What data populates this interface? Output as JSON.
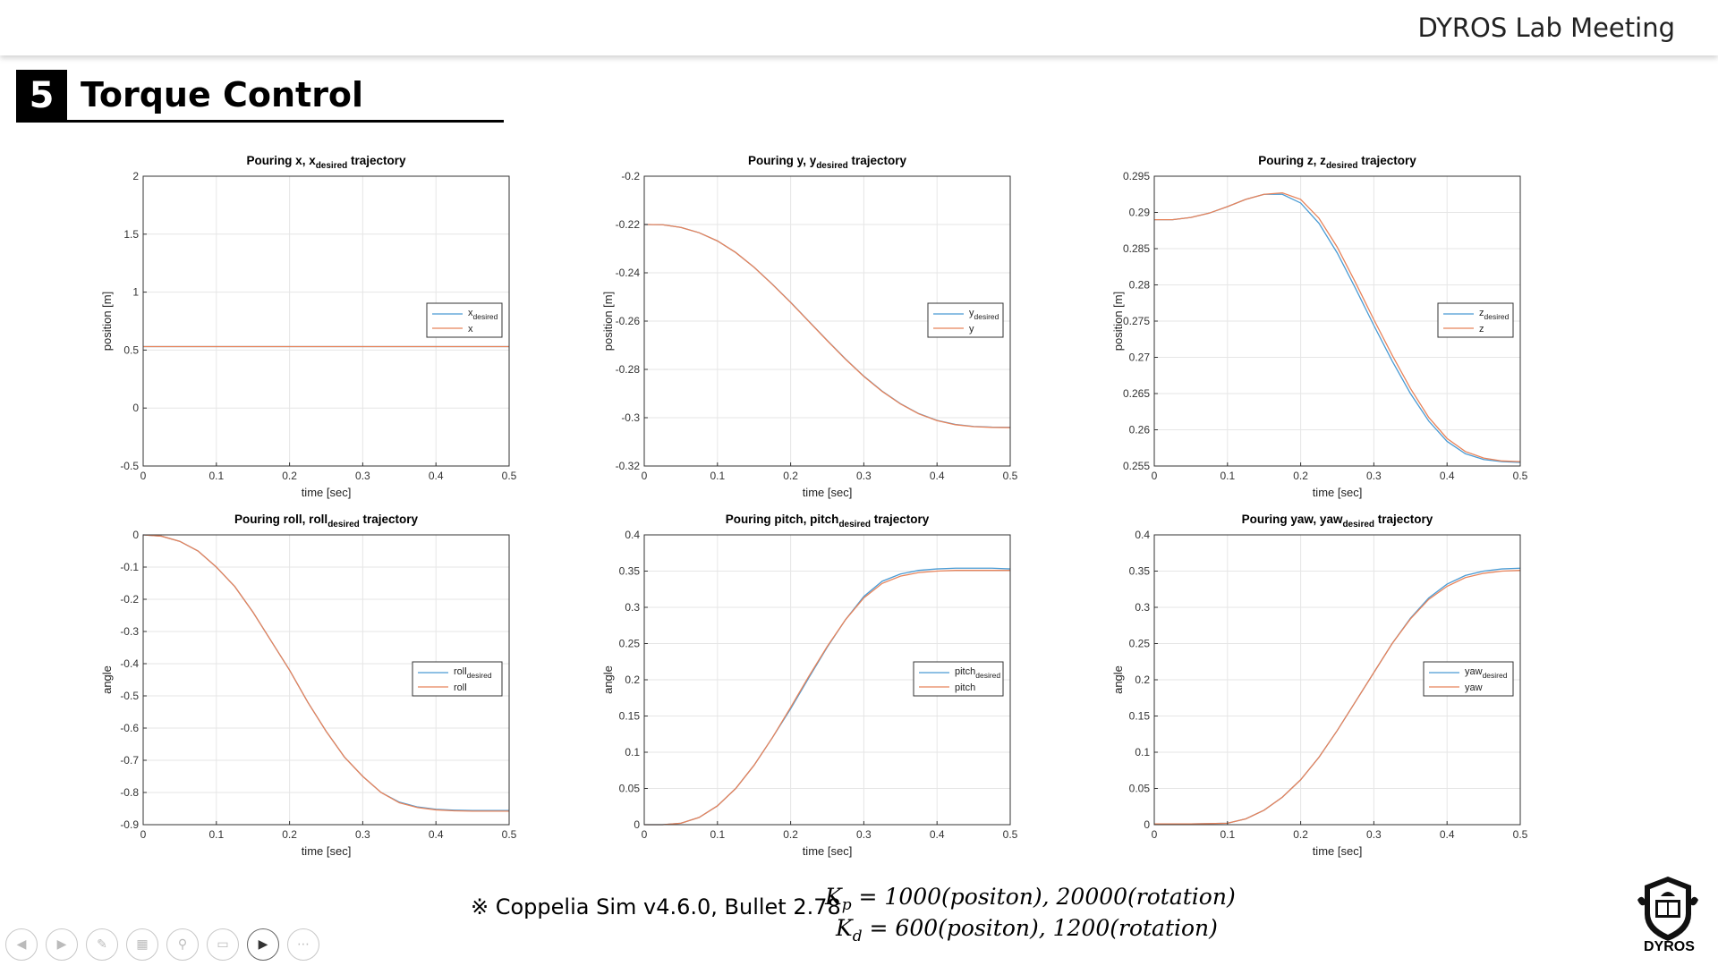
{
  "header": {
    "meeting_title": "DYROS Lab Meeting"
  },
  "section": {
    "number": "5",
    "title": "Torque Control"
  },
  "footer": {
    "note": "※ Coppelia Sim v4.6.0, Bullet 2.78",
    "kp_label": "K",
    "kp_sub": "p",
    "kp_value": "= 1000(positon), 20000(rotation)",
    "kd_label": "K",
    "kd_sub": "d",
    "kd_value": "= 600(positon), 1200(rotation)",
    "logo_text": "DYROS"
  },
  "controls": [
    "prev-icon",
    "next-icon",
    "pen-icon",
    "slides-icon",
    "zoom-icon",
    "subtitles-icon",
    "camera-icon",
    "more-icon"
  ],
  "chart_data": [
    {
      "type": "line",
      "title": "Pouring x, x",
      "title_sub": "desired",
      "title_suffix": " trajectory",
      "xlabel": "time [sec]",
      "ylabel": "position [m]",
      "xlim": [
        0,
        0.5
      ],
      "ylim": [
        -0.5,
        2
      ],
      "xticks": [
        0,
        0.1,
        0.2,
        0.3,
        0.4,
        0.5
      ],
      "xtick_labels": [
        "0",
        "0.1",
        "0.2",
        "0.3",
        "0.4",
        "0.5"
      ],
      "yticks": [
        -0.5,
        0,
        0.5,
        1,
        1.5,
        2
      ],
      "ytick_labels": [
        "-0.5",
        "0",
        "0.5",
        "1",
        "1.5",
        "2"
      ],
      "grid": true,
      "legend_position": "right",
      "series": [
        {
          "name": "x",
          "name_sub": "desired",
          "color": "#4a9bd4",
          "x": [
            0,
            0.1,
            0.2,
            0.3,
            0.4,
            0.5
          ],
          "y": [
            0.53,
            0.53,
            0.53,
            0.53,
            0.53,
            0.53
          ]
        },
        {
          "name": "x",
          "name_sub": "",
          "color": "#e8835a",
          "x": [
            0,
            0.1,
            0.2,
            0.3,
            0.4,
            0.5
          ],
          "y": [
            0.53,
            0.53,
            0.53,
            0.53,
            0.53,
            0.53
          ]
        }
      ]
    },
    {
      "type": "line",
      "title": "Pouring y, y",
      "title_sub": "desired",
      "title_suffix": " trajectory",
      "xlabel": "time [sec]",
      "ylabel": "position [m]",
      "xlim": [
        0,
        0.5
      ],
      "ylim": [
        -0.32,
        -0.2
      ],
      "xticks": [
        0,
        0.1,
        0.2,
        0.3,
        0.4,
        0.5
      ],
      "xtick_labels": [
        "0",
        "0.1",
        "0.2",
        "0.3",
        "0.4",
        "0.5"
      ],
      "yticks": [
        -0.32,
        -0.3,
        -0.28,
        -0.26,
        -0.24,
        -0.22,
        -0.2
      ],
      "ytick_labels": [
        "-0.32",
        "-0.3",
        "-0.28",
        "-0.26",
        "-0.24",
        "-0.22",
        "-0.2"
      ],
      "grid": true,
      "legend_position": "right",
      "series": [
        {
          "name": "y",
          "name_sub": "desired",
          "color": "#4a9bd4",
          "x": [
            0,
            0.025,
            0.05,
            0.075,
            0.1,
            0.125,
            0.15,
            0.175,
            0.2,
            0.225,
            0.25,
            0.275,
            0.3,
            0.325,
            0.35,
            0.375,
            0.4,
            0.425,
            0.45,
            0.475,
            0.5
          ],
          "y": [
            -0.22,
            -0.2201,
            -0.2212,
            -0.2234,
            -0.2268,
            -0.2316,
            -0.2377,
            -0.2447,
            -0.2522,
            -0.2601,
            -0.268,
            -0.2757,
            -0.2828,
            -0.289,
            -0.2942,
            -0.2983,
            -0.3011,
            -0.3028,
            -0.3036,
            -0.3039,
            -0.304
          ]
        },
        {
          "name": "y",
          "name_sub": "",
          "color": "#e8835a",
          "x": [
            0,
            0.025,
            0.05,
            0.075,
            0.1,
            0.125,
            0.15,
            0.175,
            0.2,
            0.225,
            0.25,
            0.275,
            0.3,
            0.325,
            0.35,
            0.375,
            0.4,
            0.425,
            0.45,
            0.475,
            0.5
          ],
          "y": [
            -0.22,
            -0.2201,
            -0.2212,
            -0.2234,
            -0.2268,
            -0.2316,
            -0.2377,
            -0.2448,
            -0.2523,
            -0.2602,
            -0.2681,
            -0.2758,
            -0.2829,
            -0.2891,
            -0.2943,
            -0.2984,
            -0.3012,
            -0.3029,
            -0.3037,
            -0.304,
            -0.3041
          ]
        }
      ]
    },
    {
      "type": "line",
      "title": "Pouring z, z",
      "title_sub": "desired",
      "title_suffix": " trajectory",
      "xlabel": "time [sec]",
      "ylabel": "position [m]",
      "xlim": [
        0,
        0.5
      ],
      "ylim": [
        0.255,
        0.295
      ],
      "xticks": [
        0,
        0.1,
        0.2,
        0.3,
        0.4,
        0.5
      ],
      "xtick_labels": [
        "0",
        "0.1",
        "0.2",
        "0.3",
        "0.4",
        "0.5"
      ],
      "yticks": [
        0.255,
        0.26,
        0.265,
        0.27,
        0.275,
        0.28,
        0.285,
        0.29,
        0.295
      ],
      "ytick_labels": [
        "0.255",
        "0.26",
        "0.265",
        "0.27",
        "0.275",
        "0.28",
        "0.285",
        "0.29",
        "0.295"
      ],
      "grid": true,
      "legend_position": "right",
      "series": [
        {
          "name": "z",
          "name_sub": "desired",
          "color": "#4a9bd4",
          "x": [
            0,
            0.025,
            0.05,
            0.075,
            0.1,
            0.125,
            0.15,
            0.175,
            0.2,
            0.225,
            0.25,
            0.275,
            0.3,
            0.325,
            0.35,
            0.375,
            0.4,
            0.425,
            0.45,
            0.475,
            0.5
          ],
          "y": [
            0.289,
            0.289,
            0.2893,
            0.2899,
            0.2908,
            0.2918,
            0.2925,
            0.2925,
            0.2913,
            0.2885,
            0.2844,
            0.2795,
            0.2744,
            0.2695,
            0.265,
            0.2612,
            0.2584,
            0.2567,
            0.2559,
            0.2556,
            0.2555
          ]
        },
        {
          "name": "z",
          "name_sub": "",
          "color": "#e8835a",
          "x": [
            0,
            0.025,
            0.05,
            0.075,
            0.1,
            0.125,
            0.15,
            0.175,
            0.2,
            0.225,
            0.25,
            0.275,
            0.3,
            0.325,
            0.35,
            0.375,
            0.4,
            0.425,
            0.45,
            0.475,
            0.5
          ],
          "y": [
            0.289,
            0.289,
            0.2893,
            0.2899,
            0.2908,
            0.2918,
            0.2925,
            0.2927,
            0.2918,
            0.2892,
            0.2852,
            0.2803,
            0.2752,
            0.2703,
            0.2657,
            0.2617,
            0.2588,
            0.257,
            0.2561,
            0.2557,
            0.2556
          ]
        }
      ]
    },
    {
      "type": "line",
      "title": "Pouring roll, roll",
      "title_sub": "desired",
      "title_suffix": " trajectory",
      "xlabel": "time [sec]",
      "ylabel": "angle",
      "xlim": [
        0,
        0.5
      ],
      "ylim": [
        -0.9,
        0
      ],
      "xticks": [
        0,
        0.1,
        0.2,
        0.3,
        0.4,
        0.5
      ],
      "xtick_labels": [
        "0",
        "0.1",
        "0.2",
        "0.3",
        "0.4",
        "0.5"
      ],
      "yticks": [
        -0.9,
        -0.8,
        -0.7,
        -0.6,
        -0.5,
        -0.4,
        -0.3,
        -0.2,
        -0.1,
        0
      ],
      "ytick_labels": [
        "-0.9",
        "-0.8",
        "-0.7",
        "-0.6",
        "-0.5",
        "-0.4",
        "-0.3",
        "-0.2",
        "-0.1",
        "0"
      ],
      "grid": true,
      "legend_position": "right",
      "series": [
        {
          "name": "roll",
          "name_sub": "desired",
          "color": "#4a9bd4",
          "x": [
            0,
            0.025,
            0.05,
            0.075,
            0.1,
            0.125,
            0.15,
            0.175,
            0.2,
            0.225,
            0.25,
            0.275,
            0.3,
            0.325,
            0.35,
            0.375,
            0.4,
            0.425,
            0.45,
            0.475,
            0.5
          ],
          "y": [
            0,
            -0.004,
            -0.02,
            -0.05,
            -0.1,
            -0.16,
            -0.24,
            -0.33,
            -0.42,
            -0.52,
            -0.61,
            -0.69,
            -0.75,
            -0.8,
            -0.83,
            -0.845,
            -0.852,
            -0.855,
            -0.856,
            -0.856,
            -0.856
          ]
        },
        {
          "name": "roll",
          "name_sub": "",
          "color": "#e8835a",
          "x": [
            0,
            0.025,
            0.05,
            0.075,
            0.1,
            0.125,
            0.15,
            0.175,
            0.2,
            0.225,
            0.25,
            0.275,
            0.3,
            0.325,
            0.35,
            0.375,
            0.4,
            0.425,
            0.45,
            0.475,
            0.5
          ],
          "y": [
            0,
            -0.004,
            -0.02,
            -0.05,
            -0.1,
            -0.16,
            -0.24,
            -0.33,
            -0.42,
            -0.52,
            -0.61,
            -0.69,
            -0.75,
            -0.8,
            -0.832,
            -0.847,
            -0.854,
            -0.857,
            -0.858,
            -0.858,
            -0.858
          ]
        }
      ]
    },
    {
      "type": "line",
      "title": "Pouring pitch, pitch",
      "title_sub": "desired",
      "title_suffix": " trajectory",
      "xlabel": "time [sec]",
      "ylabel": "angle",
      "xlim": [
        0,
        0.5
      ],
      "ylim": [
        0,
        0.4
      ],
      "xticks": [
        0,
        0.1,
        0.2,
        0.3,
        0.4,
        0.5
      ],
      "xtick_labels": [
        "0",
        "0.1",
        "0.2",
        "0.3",
        "0.4",
        "0.5"
      ],
      "yticks": [
        0,
        0.05,
        0.1,
        0.15,
        0.2,
        0.25,
        0.3,
        0.35,
        0.4
      ],
      "ytick_labels": [
        "0",
        "0.05",
        "0.1",
        "0.15",
        "0.2",
        "0.25",
        "0.3",
        "0.35",
        "0.4"
      ],
      "grid": true,
      "legend_position": "right",
      "series": [
        {
          "name": "pitch",
          "name_sub": "desired",
          "color": "#4a9bd4",
          "x": [
            0,
            0.025,
            0.05,
            0.075,
            0.1,
            0.125,
            0.15,
            0.175,
            0.2,
            0.225,
            0.25,
            0.275,
            0.3,
            0.325,
            0.35,
            0.375,
            0.4,
            0.425,
            0.45,
            0.475,
            0.5
          ],
          "y": [
            0,
            0,
            0.002,
            0.01,
            0.026,
            0.05,
            0.082,
            0.12,
            0.16,
            0.203,
            0.245,
            0.283,
            0.315,
            0.336,
            0.346,
            0.351,
            0.353,
            0.354,
            0.354,
            0.354,
            0.353
          ]
        },
        {
          "name": "pitch",
          "name_sub": "",
          "color": "#e8835a",
          "x": [
            0,
            0.025,
            0.05,
            0.075,
            0.1,
            0.125,
            0.15,
            0.175,
            0.2,
            0.225,
            0.25,
            0.275,
            0.3,
            0.325,
            0.35,
            0.375,
            0.4,
            0.425,
            0.45,
            0.475,
            0.5
          ],
          "y": [
            0,
            0,
            0.002,
            0.01,
            0.026,
            0.05,
            0.082,
            0.12,
            0.162,
            0.205,
            0.246,
            0.283,
            0.313,
            0.333,
            0.343,
            0.348,
            0.35,
            0.351,
            0.351,
            0.351,
            0.351
          ]
        }
      ]
    },
    {
      "type": "line",
      "title": "Pouring yaw, yaw",
      "title_sub": "desired",
      "title_suffix": " trajectory",
      "xlabel": "time [sec]",
      "ylabel": "angle",
      "xlim": [
        0,
        0.5
      ],
      "ylim": [
        0,
        0.4
      ],
      "xticks": [
        0,
        0.1,
        0.2,
        0.3,
        0.4,
        0.5
      ],
      "xtick_labels": [
        "0",
        "0.1",
        "0.2",
        "0.3",
        "0.4",
        "0.5"
      ],
      "yticks": [
        0,
        0.05,
        0.1,
        0.15,
        0.2,
        0.25,
        0.3,
        0.35,
        0.4
      ],
      "ytick_labels": [
        "0",
        "0.05",
        "0.1",
        "0.15",
        "0.2",
        "0.25",
        "0.3",
        "0.35",
        "0.4"
      ],
      "grid": true,
      "legend_position": "right",
      "series": [
        {
          "name": "yaw",
          "name_sub": "desired",
          "color": "#4a9bd4",
          "x": [
            0,
            0.05,
            0.1,
            0.125,
            0.15,
            0.175,
            0.2,
            0.225,
            0.25,
            0.275,
            0.3,
            0.325,
            0.35,
            0.375,
            0.4,
            0.425,
            0.45,
            0.475,
            0.5
          ],
          "y": [
            0.001,
            0.001,
            0.002,
            0.008,
            0.02,
            0.038,
            0.062,
            0.093,
            0.13,
            0.17,
            0.21,
            0.25,
            0.285,
            0.313,
            0.332,
            0.344,
            0.35,
            0.353,
            0.354
          ]
        },
        {
          "name": "yaw",
          "name_sub": "",
          "color": "#e8835a",
          "x": [
            0,
            0.05,
            0.1,
            0.125,
            0.15,
            0.175,
            0.2,
            0.225,
            0.25,
            0.275,
            0.3,
            0.325,
            0.35,
            0.375,
            0.4,
            0.425,
            0.45,
            0.475,
            0.5
          ],
          "y": [
            0.001,
            0.001,
            0.002,
            0.008,
            0.02,
            0.038,
            0.062,
            0.093,
            0.13,
            0.17,
            0.21,
            0.25,
            0.284,
            0.311,
            0.329,
            0.341,
            0.347,
            0.35,
            0.351
          ]
        }
      ]
    }
  ]
}
